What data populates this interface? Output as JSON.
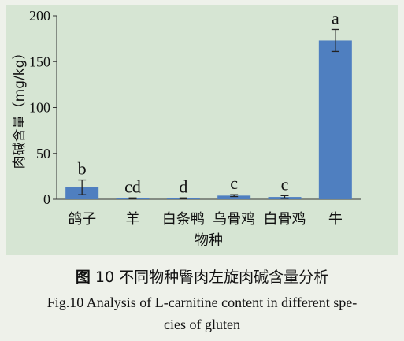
{
  "chart_data": {
    "type": "bar",
    "categories": [
      "鸽子",
      "羊",
      "白条鸭",
      "乌骨鸡",
      "白骨鸡",
      "牛"
    ],
    "values": [
      13,
      1,
      1,
      4,
      2.5,
      173
    ],
    "errors": [
      8,
      0.5,
      0.5,
      1,
      1.5,
      12
    ],
    "significance_labels": [
      "b",
      "cd",
      "d",
      "c",
      "c",
      "a"
    ],
    "xlabel": "物种",
    "ylabel": "肉碱含量（mg/kg）",
    "ylim": [
      0,
      200
    ],
    "yticks": [
      0,
      50,
      100,
      150,
      200
    ],
    "bar_color": "#4f7fc0",
    "grid": false
  },
  "caption": {
    "fig_label": "图",
    "cn_text": "10 不同物种臀肉左旋肉碱含量分析",
    "en_line1": "Fig.10 Analysis of L-carnitine content in different spe-",
    "en_line2": "cies of gluten"
  }
}
